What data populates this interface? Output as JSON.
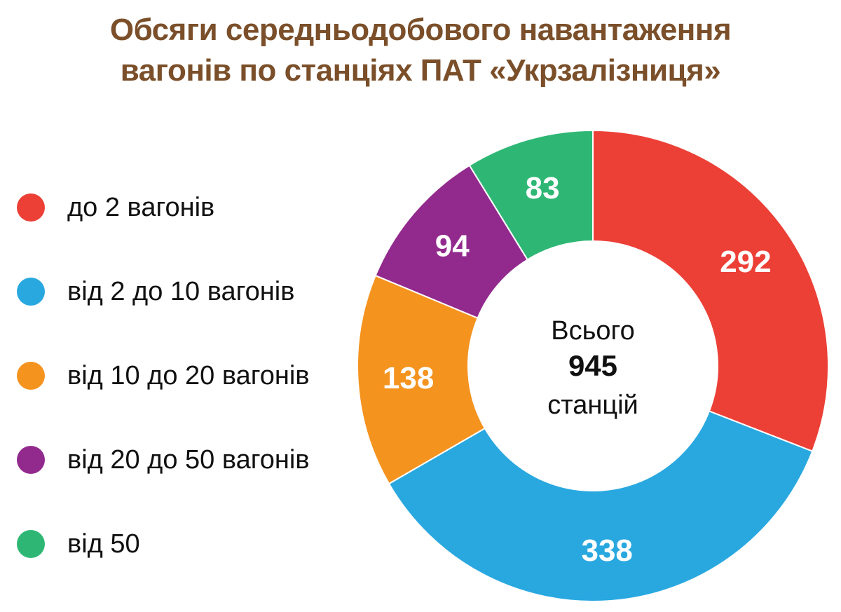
{
  "chart_data": {
    "type": "pie",
    "variant": "donut",
    "title_line1": "Обсяги середньодобового навантаження",
    "title_line2": "вагонів по станціях ПАТ «Укрзалізниця»",
    "categories": [
      "до 2 вагонів",
      "від 2 до 10 вагонів",
      "від 10 до 20 вагонів",
      "від 20 до 50 вагонів",
      "від 50"
    ],
    "values": [
      292,
      338,
      138,
      94,
      83
    ],
    "colors": [
      "#ec4037",
      "#29a8e0",
      "#f5931f",
      "#922a8e",
      "#2eb774"
    ],
    "legend_position": "left",
    "center_line1": "Всього",
    "center_total": "945",
    "center_line3": "станцій"
  }
}
